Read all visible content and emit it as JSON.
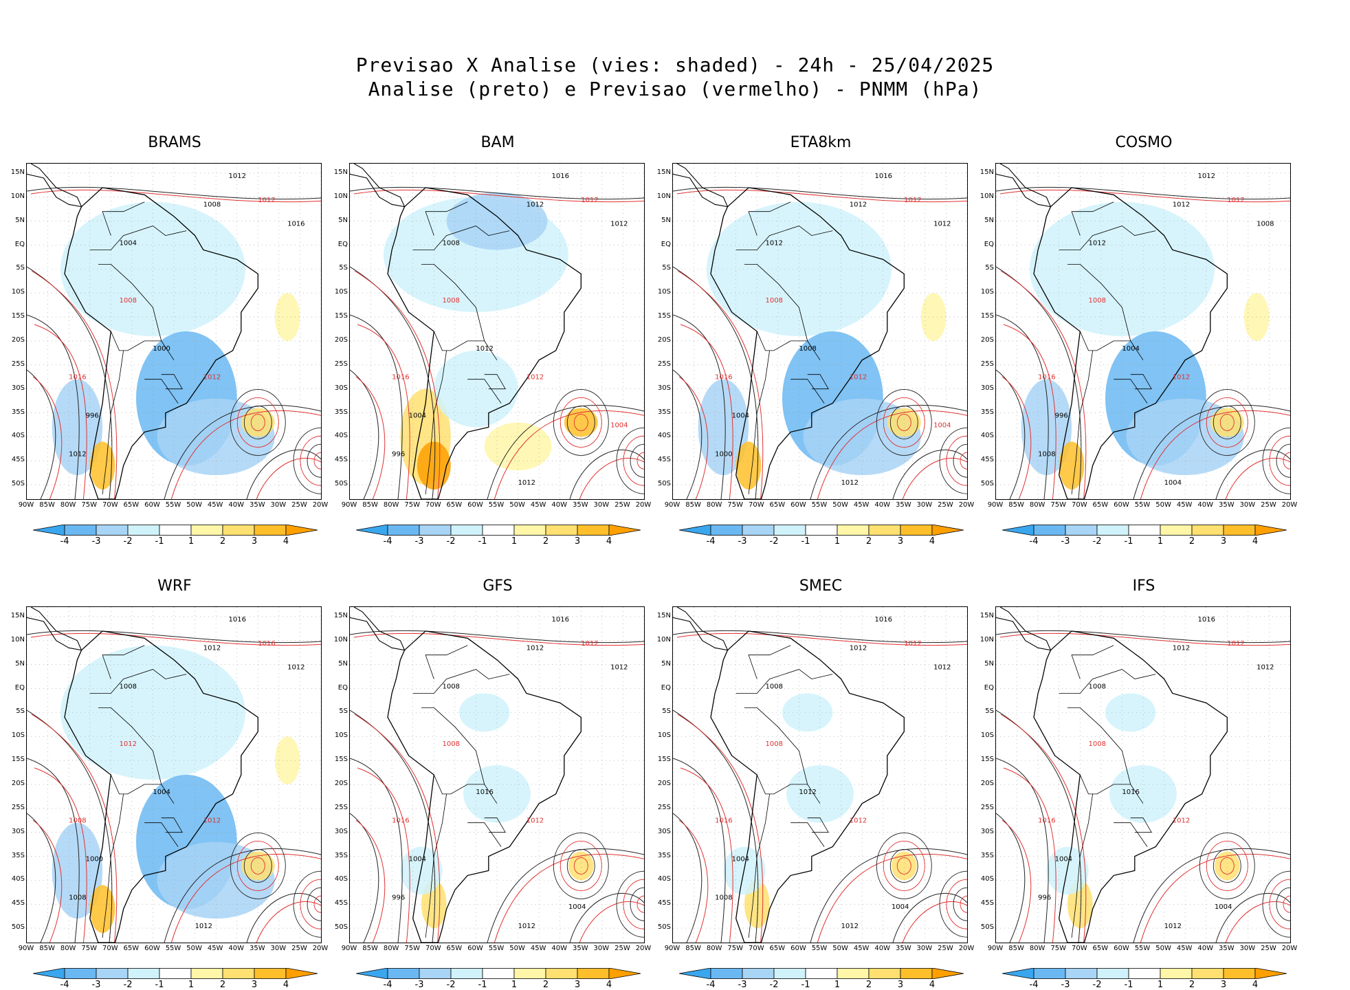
{
  "header": {
    "title_line1": "Previsao X Analise (vies: shaded) - 24h - 25/04/2025",
    "title_line2": "Analise (preto) e Previsao (vermelho) - PNMM (hPa)"
  },
  "axes": {
    "lat_labels": [
      "15N",
      "10N",
      "5N",
      "EQ",
      "5S",
      "10S",
      "15S",
      "20S",
      "25S",
      "30S",
      "35S",
      "40S",
      "45S",
      "50S"
    ],
    "lon_labels": [
      "90W",
      "85W",
      "80W",
      "75W",
      "70W",
      "65W",
      "60W",
      "55W",
      "50W",
      "45W",
      "40W",
      "35W",
      "30W",
      "25W",
      "20W"
    ]
  },
  "colorbar": {
    "ticks": [
      "-4",
      "-3",
      "-2",
      "-1",
      "1",
      "2",
      "3",
      "4"
    ],
    "colors": [
      "#3aa6ee",
      "#6ab8f2",
      "#a8d4f6",
      "#d0f2fb",
      "#ffffff",
      "#fff6a8",
      "#ffe070",
      "#ffbf2a",
      "#ffa000"
    ]
  },
  "panels": [
    {
      "name": "BRAMS",
      "bias": "neg",
      "labels_black": [
        "1012",
        "1008",
        "1016",
        "1004",
        "1000",
        "996",
        "1012"
      ],
      "labels_red": [
        "1012",
        "1008",
        "1016",
        "1012"
      ]
    },
    {
      "name": "BAM",
      "bias": "mix",
      "labels_black": [
        "1016",
        "1012",
        "1012",
        "1008",
        "1012",
        "1004",
        "996",
        "1012"
      ],
      "labels_red": [
        "1012",
        "1008",
        "1016",
        "1012",
        "1004"
      ]
    },
    {
      "name": "ETA8km",
      "bias": "neg",
      "labels_black": [
        "1016",
        "1012",
        "1012",
        "1012",
        "1008",
        "1004",
        "1000",
        "1012"
      ],
      "labels_red": [
        "1012",
        "1008",
        "1016",
        "1012",
        "1004"
      ]
    },
    {
      "name": "COSMO",
      "bias": "neg",
      "labels_black": [
        "1012",
        "1012",
        "1008",
        "1012",
        "1004",
        "996",
        "1008",
        "1004"
      ],
      "labels_red": [
        "1012",
        "1008",
        "1016",
        "1012"
      ]
    },
    {
      "name": "WRF",
      "bias": "neg",
      "labels_black": [
        "1016",
        "1012",
        "1012",
        "1008",
        "1004",
        "1000",
        "1008",
        "1012"
      ],
      "labels_red": [
        "1016",
        "1012",
        "1008",
        "1012"
      ]
    },
    {
      "name": "GFS",
      "bias": "low",
      "labels_black": [
        "1016",
        "1012",
        "1012",
        "1008",
        "1016",
        "1004",
        "996",
        "1012",
        "1004"
      ],
      "labels_red": [
        "1012",
        "1008",
        "1016",
        "1012"
      ]
    },
    {
      "name": "SMEC",
      "bias": "low",
      "labels_black": [
        "1016",
        "1012",
        "1012",
        "1008",
        "1012",
        "1004",
        "1008",
        "1012",
        "1004"
      ],
      "labels_red": [
        "1012",
        "1008",
        "1016",
        "1012"
      ]
    },
    {
      "name": "IFS",
      "bias": "low",
      "labels_black": [
        "1016",
        "1012",
        "1012",
        "1008",
        "1016",
        "1004",
        "996",
        "1012",
        "1004"
      ],
      "labels_red": [
        "1012",
        "1008",
        "1016",
        "1012"
      ]
    }
  ]
}
